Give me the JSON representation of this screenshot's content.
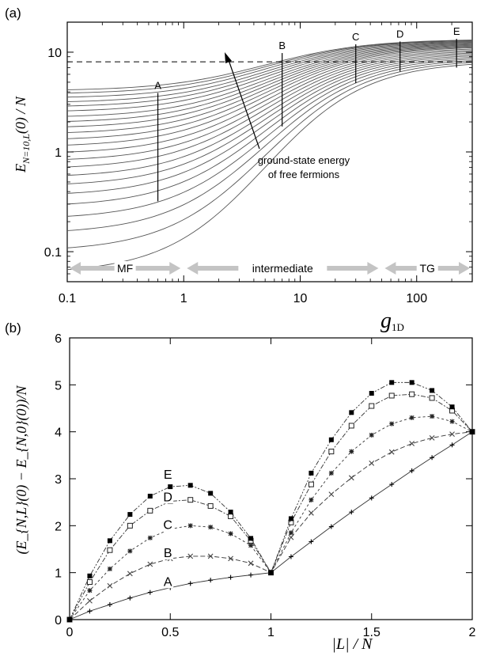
{
  "chart_data": [
    {
      "panel": "(a)",
      "type": "line",
      "x_scale": "log",
      "y_scale": "log",
      "xlim": [
        0.1,
        300
      ],
      "ylim": [
        0.05,
        20
      ],
      "xticks": [
        "0.1",
        "1",
        "10",
        "100"
      ],
      "yticks": [
        "0.1",
        "1",
        "10"
      ],
      "ylabel": "E_{N=10,L}(0) / N",
      "xlabel": "g_1D",
      "xlabel_main": "g",
      "xlabel_sub": "1D",
      "ylabel_main": "E",
      "ylabel_sub": "N=10,L",
      "ylabel_rest": "(0) / N",
      "grid": false,
      "reference_line": {
        "y": 8.0,
        "style": "dashed"
      },
      "annotation": {
        "line1": "ground-state energy",
        "line2": "of free fermions"
      },
      "markers": [
        {
          "label": "A",
          "x": 0.6,
          "y_range": [
            0.32,
            3.9
          ]
        },
        {
          "label": "B",
          "x": 7,
          "y_range": [
            1.8,
            9.8
          ]
        },
        {
          "label": "C",
          "x": 30,
          "y_range": [
            4.9,
            12
          ]
        },
        {
          "label": "D",
          "x": 72,
          "y_range": [
            6.4,
            12.8
          ]
        },
        {
          "label": "E",
          "x": 220,
          "y_range": [
            7.0,
            13.6
          ]
        }
      ],
      "regimes": [
        {
          "label": "MF",
          "x_range": [
            0.1,
            1
          ]
        },
        {
          "label": "intermediate",
          "x_range": [
            1,
            50
          ]
        },
        {
          "label": "TG",
          "x_range": [
            50,
            300
          ]
        }
      ],
      "series": [
        {
          "low": 0.06,
          "high": 8.2,
          "mid": 5
        },
        {
          "low": 0.1,
          "high": 8.5,
          "mid": 5
        },
        {
          "low": 0.15,
          "high": 8.8,
          "mid": 5
        },
        {
          "low": 0.21,
          "high": 9.1,
          "mid": 5
        },
        {
          "low": 0.28,
          "high": 9.4,
          "mid": 5
        },
        {
          "low": 0.36,
          "high": 9.7,
          "mid": 5
        },
        {
          "low": 0.45,
          "high": 10.0,
          "mid": 5
        },
        {
          "low": 0.55,
          "high": 10.3,
          "mid": 5
        },
        {
          "low": 0.67,
          "high": 10.6,
          "mid": 5
        },
        {
          "low": 0.8,
          "high": 10.9,
          "mid": 5
        },
        {
          "low": 0.95,
          "high": 11.2,
          "mid": 5
        },
        {
          "low": 1.12,
          "high": 11.5,
          "mid": 5
        },
        {
          "low": 1.3,
          "high": 11.7,
          "mid": 5
        },
        {
          "low": 1.5,
          "high": 11.9,
          "mid": 5
        },
        {
          "low": 1.72,
          "high": 12.1,
          "mid": 5
        },
        {
          "low": 1.95,
          "high": 12.3,
          "mid": 5
        },
        {
          "low": 2.2,
          "high": 12.5,
          "mid": 5
        },
        {
          "low": 2.5,
          "high": 12.7,
          "mid": 5
        },
        {
          "low": 2.8,
          "high": 12.9,
          "mid": 5
        },
        {
          "low": 3.1,
          "high": 13.1,
          "mid": 5
        },
        {
          "low": 3.45,
          "high": 13.3,
          "mid": 5
        },
        {
          "low": 3.8,
          "high": 13.4,
          "mid": 5
        },
        {
          "low": 4.1,
          "high": 13.5,
          "mid": 5
        }
      ]
    },
    {
      "panel": "(b)",
      "type": "line",
      "xlim": [
        0,
        2
      ],
      "ylim": [
        0,
        6
      ],
      "xticks": [
        "0",
        "0.5",
        "1",
        "1.5",
        "2"
      ],
      "yticks": [
        "0",
        "1",
        "2",
        "3",
        "4",
        "5",
        "6"
      ],
      "xlabel": "|L| / N",
      "ylabel": "(E_{N,L}(0) − E_{N,0}(0))/N",
      "grid": false,
      "x": [
        0,
        0.1,
        0.2,
        0.3,
        0.4,
        0.5,
        0.6,
        0.7,
        0.8,
        0.9,
        1.0,
        1.1,
        1.2,
        1.3,
        1.4,
        1.5,
        1.6,
        1.7,
        1.8,
        1.9,
        2.0
      ],
      "series": [
        {
          "name": "A",
          "marker": "plus",
          "values": [
            0,
            0.18,
            0.32,
            0.46,
            0.58,
            0.68,
            0.77,
            0.84,
            0.9,
            0.95,
            1.0,
            1.34,
            1.66,
            1.98,
            2.29,
            2.59,
            2.88,
            3.17,
            3.45,
            3.72,
            4.0
          ]
        },
        {
          "name": "B",
          "marker": "x",
          "values": [
            0,
            0.4,
            0.72,
            0.98,
            1.18,
            1.3,
            1.35,
            1.35,
            1.3,
            1.2,
            1.0,
            1.75,
            2.27,
            2.67,
            3.02,
            3.33,
            3.57,
            3.75,
            3.87,
            3.95,
            4.0
          ]
        },
        {
          "name": "C",
          "marker": "star",
          "values": [
            0,
            0.62,
            1.08,
            1.46,
            1.74,
            1.93,
            2.0,
            1.97,
            1.83,
            1.58,
            1.0,
            1.85,
            2.55,
            3.12,
            3.58,
            3.93,
            4.17,
            4.3,
            4.33,
            4.22,
            4.0
          ]
        },
        {
          "name": "D",
          "marker": "open-square",
          "values": [
            0,
            0.8,
            1.48,
            2.0,
            2.32,
            2.52,
            2.55,
            2.42,
            2.2,
            1.68,
            1.0,
            2.07,
            2.88,
            3.58,
            4.13,
            4.55,
            4.77,
            4.8,
            4.72,
            4.45,
            4.0
          ]
        },
        {
          "name": "E",
          "marker": "filled-square",
          "values": [
            0,
            0.93,
            1.68,
            2.24,
            2.63,
            2.83,
            2.86,
            2.69,
            2.29,
            1.73,
            1.0,
            2.15,
            3.12,
            3.83,
            4.41,
            4.82,
            5.05,
            5.05,
            4.88,
            4.53,
            4.0
          ]
        }
      ]
    }
  ]
}
